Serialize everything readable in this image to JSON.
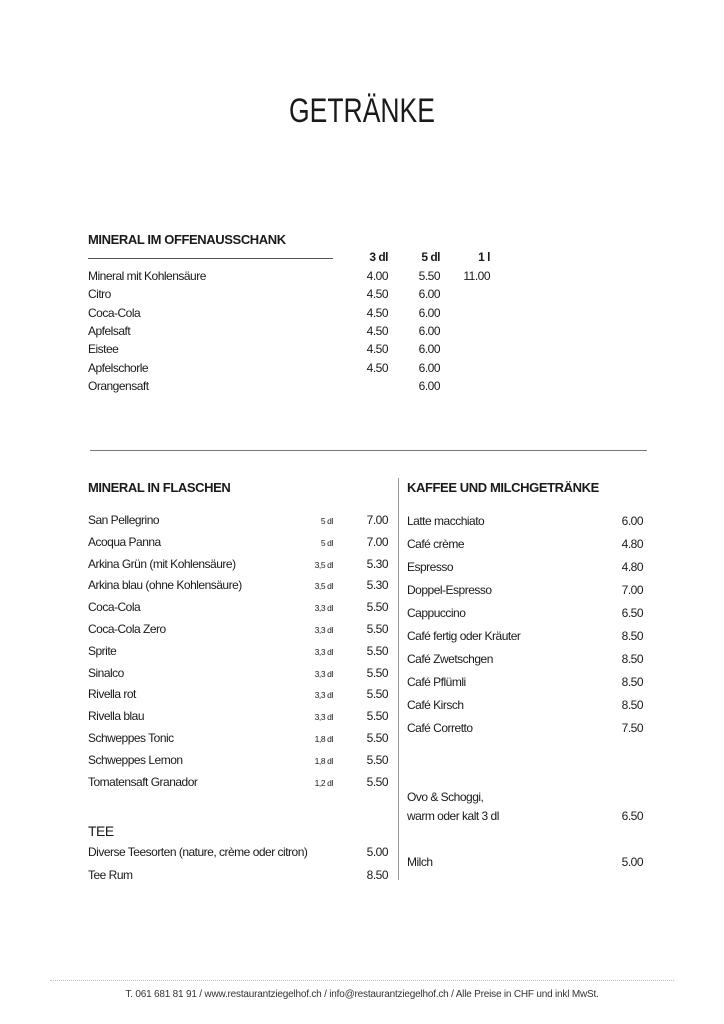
{
  "title": "GETRÄNKE",
  "offen": {
    "heading": "MINERAL IM OFFENAUSSCHANK",
    "columns": [
      "3 dl",
      "5 dl",
      "1 l"
    ],
    "items": [
      {
        "name": "Mineral mit Kohlensäure",
        "p3": "4.00",
        "p5": "5.50",
        "p10": "11.00"
      },
      {
        "name": "Citro",
        "p3": "4.50",
        "p5": "6.00",
        "p10": ""
      },
      {
        "name": "Coca-Cola",
        "p3": "4.50",
        "p5": "6.00",
        "p10": ""
      },
      {
        "name": "Apfelsaft",
        "p3": "4.50",
        "p5": "6.00",
        "p10": ""
      },
      {
        "name": "Eistee",
        "p3": "4.50",
        "p5": "6.00",
        "p10": ""
      },
      {
        "name": "Apfelschorle",
        "p3": "4.50",
        "p5": "6.00",
        "p10": ""
      },
      {
        "name": "Orangensaft",
        "p3": "",
        "p5": "6.00",
        "p10": ""
      }
    ]
  },
  "flaschen": {
    "heading": "MINERAL IN FLASCHEN",
    "items": [
      {
        "name": "San Pellegrino",
        "size": "5 dl",
        "price": "7.00"
      },
      {
        "name": "Acoqua Panna",
        "size": "5 dl",
        "price": "7.00"
      },
      {
        "name": "Arkina Grün (mit Kohlensäure)",
        "size": "3,5 dl",
        "price": "5.30"
      },
      {
        "name": "Arkina blau (ohne Kohlensäure)",
        "size": "3,5 dl",
        "price": "5.30"
      },
      {
        "name": "Coca-Cola",
        "size": "3,3 dl",
        "price": "5.50"
      },
      {
        "name": "Coca-Cola Zero",
        "size": "3,3 dl",
        "price": "5.50"
      },
      {
        "name": "Sprite",
        "size": "3,3 dl",
        "price": "5.50"
      },
      {
        "name": "Sinalco",
        "size": "3,3 dl",
        "price": "5.50"
      },
      {
        "name": "Rivella rot",
        "size": "3,3 dl",
        "price": "5.50"
      },
      {
        "name": "Rivella blau",
        "size": "3,3 dl",
        "price": "5.50"
      },
      {
        "name": "Schweppes Tonic",
        "size": "1,8 dl",
        "price": "5.50"
      },
      {
        "name": "Schweppes Lemon",
        "size": "1,8 dl",
        "price": "5.50"
      },
      {
        "name": "Tomatensaft Granador",
        "size": "1,2 dl",
        "price": "5.50"
      }
    ]
  },
  "tee": {
    "heading": "TEE",
    "items": [
      {
        "name": "Diverse Teesorten (nature, crème oder citron)",
        "price": "5.00"
      },
      {
        "name": "Tee Rum",
        "price": "8.50"
      }
    ]
  },
  "kaffee": {
    "heading": "KAFFEE UND MILCHGETRÄNKE",
    "items": [
      {
        "name": "Latte macchiato",
        "price": "6.00"
      },
      {
        "name": "Café crème",
        "price": "4.80"
      },
      {
        "name": "Espresso",
        "price": "4.80"
      },
      {
        "name": "Doppel-Espresso",
        "price": "7.00"
      },
      {
        "name": "Cappuccino",
        "price": "6.50"
      },
      {
        "name": "Café fertig oder Kräuter",
        "price": "8.50"
      },
      {
        "name": "Café Zwetschgen",
        "price": "8.50"
      },
      {
        "name": "Café Pflümli",
        "price": "8.50"
      },
      {
        "name": "Café Kirsch",
        "price": "8.50"
      },
      {
        "name": "Café Corretto",
        "price": "7.50"
      }
    ],
    "ovo": {
      "line1": "Ovo & Schoggi,",
      "line2": "warm oder kalt 3 dl",
      "price": "6.50"
    },
    "milch": {
      "name": "Milch",
      "price": "5.00"
    }
  },
  "footer": "T. 061 681 81 91 / www.restaurantziegelhof.ch / info@restaurantziegelhof.ch / Alle Preise in CHF und inkl MwSt."
}
